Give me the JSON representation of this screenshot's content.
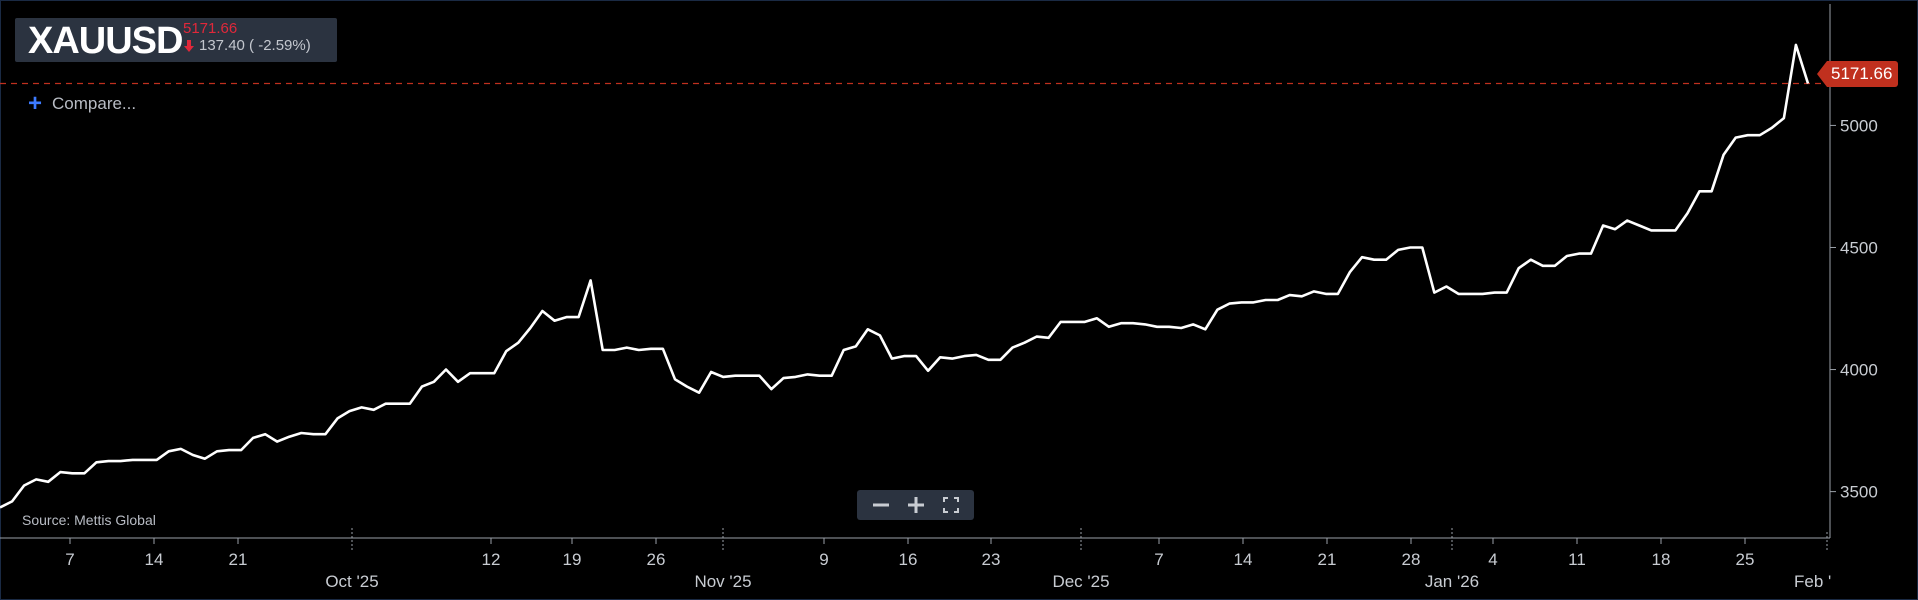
{
  "symbol": {
    "name": "XAUUSD",
    "last_price": "5171.66",
    "change": "137.40 ( -2.59%)"
  },
  "compare": {
    "label": "Compare..."
  },
  "source": "Source: Mettis Global",
  "price_tag": "5171.66",
  "colors": {
    "line": "#ffffff",
    "down": "#e0283a",
    "tag": "#c0301e",
    "dash": "#c0301e"
  },
  "zoom_controls": [
    "zoom-out-icon",
    "zoom-in-icon",
    "fullscreen-icon"
  ],
  "chart_data": {
    "type": "line",
    "series": [
      {
        "values": [
          3435,
          3460,
          3525,
          3550,
          3540,
          3580,
          3575,
          3575,
          3620,
          3625,
          3625,
          3630,
          3630,
          3630,
          3665,
          3675,
          3650,
          3635,
          3665,
          3670,
          3670,
          3720,
          3735,
          3705,
          3725,
          3740,
          3735,
          3735,
          3800,
          3830,
          3845,
          3835,
          3860,
          3860,
          3860,
          3930,
          3950,
          4000,
          3950,
          3985,
          3985,
          3985,
          4075,
          4110,
          4170,
          4240,
          4200,
          4215,
          4215,
          4365,
          4080,
          4080,
          4090,
          4080,
          4085,
          4085,
          3960,
          3930,
          3905,
          3990,
          3970,
          3975,
          3975,
          3975,
          3920,
          3965,
          3970,
          3980,
          3975,
          3975,
          4080,
          4095,
          4165,
          4140,
          4045,
          4055,
          4055,
          3995,
          4050,
          4045,
          4055,
          4060,
          4040,
          4040,
          4090,
          4110,
          4135,
          4130,
          4195,
          4195,
          4195,
          4210,
          4175,
          4190,
          4190,
          4185,
          4175,
          4175,
          4170,
          4185,
          4165,
          4245,
          4270,
          4275,
          4275,
          4285,
          4285,
          4305,
          4300,
          4320,
          4310,
          4310,
          4400,
          4460,
          4450,
          4450,
          4490,
          4500,
          4500,
          4315,
          4340,
          4310,
          4310,
          4310,
          4315,
          4315,
          4415,
          4450,
          4425,
          4425,
          4465,
          4475,
          4475,
          4590,
          4575,
          4610,
          4590,
          4570,
          4570,
          4570,
          4640,
          4730,
          4730,
          4880,
          4950,
          4960,
          4960,
          4990,
          5030,
          5330,
          5171.66
        ]
      }
    ],
    "y_ticks": [
      3500,
      4000,
      4500,
      5000
    ],
    "ylim": [
      3310,
      5440
    ],
    "x_tick_labels": [
      "7",
      "14",
      "21",
      "Oct '25",
      "12",
      "19",
      "26",
      "Nov '25",
      "9",
      "16",
      "23",
      "Dec '25",
      "7",
      "14",
      "21",
      "28",
      "Jan '26",
      "4",
      "11",
      "18",
      "25",
      "Feb '"
    ],
    "last_value": 5171.66,
    "grid": false,
    "legend": "none"
  }
}
